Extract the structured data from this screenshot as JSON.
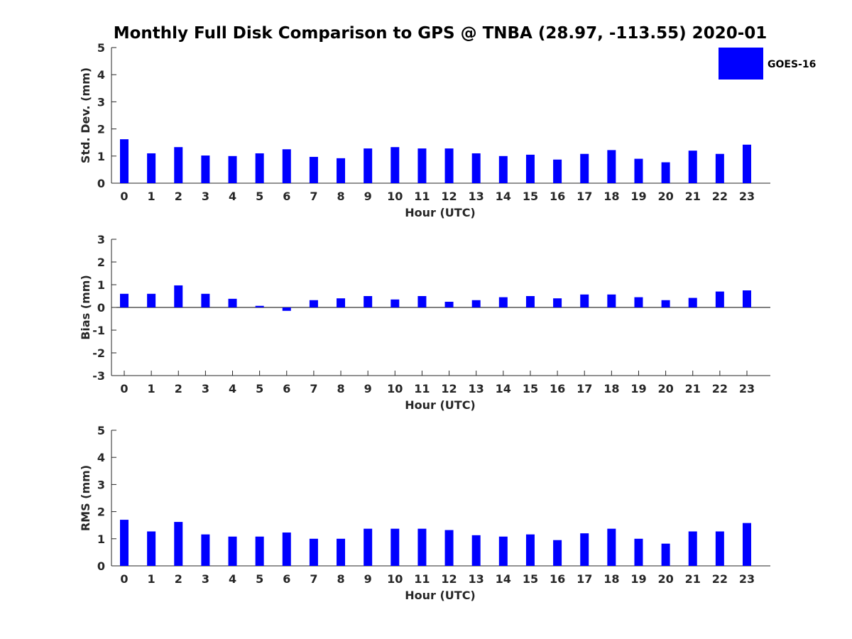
{
  "figure": {
    "title": "Monthly Full Disk Comparison to GPS @ TNBA (28.97, -113.55) 2020-01",
    "bar_color": "#0000ff",
    "axis_color": "#262626"
  },
  "legend": {
    "label": "GOES-16",
    "placement": "top-right"
  },
  "chart_data": [
    {
      "type": "bar",
      "categories": [
        "0",
        "1",
        "2",
        "3",
        "4",
        "5",
        "6",
        "7",
        "8",
        "9",
        "10",
        "11",
        "12",
        "13",
        "14",
        "15",
        "16",
        "17",
        "18",
        "19",
        "20",
        "21",
        "22",
        "23"
      ],
      "series": [
        {
          "name": "GOES-16",
          "values": [
            1.62,
            1.1,
            1.33,
            1.02,
            1.0,
            1.1,
            1.25,
            0.97,
            0.92,
            1.28,
            1.33,
            1.28,
            1.28,
            1.1,
            1.0,
            1.05,
            0.87,
            1.08,
            1.22,
            0.9,
            0.77,
            1.2,
            1.08,
            1.42
          ]
        }
      ],
      "xlabel": "Hour (UTC)",
      "ylabel": "Std. Dev. (mm)",
      "ylim": [
        0,
        5
      ],
      "yticks": [
        "0",
        "1",
        "2",
        "3",
        "4",
        "5"
      ]
    },
    {
      "type": "bar",
      "categories": [
        "0",
        "1",
        "2",
        "3",
        "4",
        "5",
        "6",
        "7",
        "8",
        "9",
        "10",
        "11",
        "12",
        "13",
        "14",
        "15",
        "16",
        "17",
        "18",
        "19",
        "20",
        "21",
        "22",
        "23"
      ],
      "series": [
        {
          "name": "GOES-16",
          "values": [
            0.6,
            0.6,
            0.97,
            0.6,
            0.38,
            0.07,
            -0.15,
            0.32,
            0.4,
            0.5,
            0.35,
            0.5,
            0.25,
            0.32,
            0.45,
            0.5,
            0.4,
            0.57,
            0.57,
            0.45,
            0.32,
            0.42,
            0.7,
            0.75
          ]
        }
      ],
      "xlabel": "Hour (UTC)",
      "ylabel": "Bias (mm)",
      "ylim": [
        -3,
        3
      ],
      "yticks": [
        "-3",
        "-2",
        "-1",
        "0",
        "1",
        "2",
        "3"
      ]
    },
    {
      "type": "bar",
      "categories": [
        "0",
        "1",
        "2",
        "3",
        "4",
        "5",
        "6",
        "7",
        "8",
        "9",
        "10",
        "11",
        "12",
        "13",
        "14",
        "15",
        "16",
        "17",
        "18",
        "19",
        "20",
        "21",
        "22",
        "23"
      ],
      "series": [
        {
          "name": "GOES-16",
          "values": [
            1.7,
            1.27,
            1.62,
            1.16,
            1.08,
            1.08,
            1.23,
            1.0,
            1.0,
            1.37,
            1.37,
            1.37,
            1.32,
            1.13,
            1.08,
            1.16,
            0.95,
            1.2,
            1.37,
            1.0,
            0.82,
            1.27,
            1.27,
            1.58
          ]
        }
      ],
      "xlabel": "Hour (UTC)",
      "ylabel": "RMS (mm)",
      "ylim": [
        0,
        5
      ],
      "yticks": [
        "0",
        "1",
        "2",
        "3",
        "4",
        "5"
      ]
    }
  ]
}
